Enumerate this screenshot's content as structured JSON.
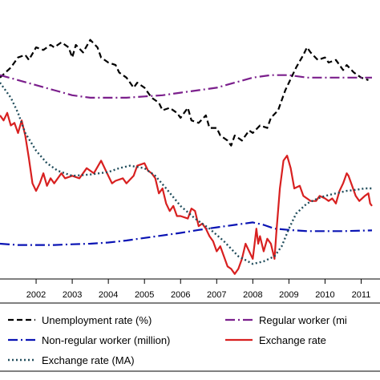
{
  "chart_data": {
    "type": "line",
    "x_ticks": [
      "2002",
      "2003",
      "2004",
      "2005",
      "2006",
      "2007",
      "2008",
      "2009",
      "2010",
      "2011"
    ],
    "x_range": [
      2001.0,
      2011.3
    ],
    "y_range": [
      0,
      100
    ],
    "grid": false,
    "legend_placement": "bottom",
    "series": [
      {
        "name": "Unemployment rate (%)",
        "color": "#000000",
        "style": "dashed",
        "points": [
          [
            2001.0,
            80
          ],
          [
            2001.3,
            84
          ],
          [
            2001.5,
            88
          ],
          [
            2001.7,
            89
          ],
          [
            2001.8,
            87
          ],
          [
            2002.0,
            92
          ],
          [
            2002.2,
            91
          ],
          [
            2002.4,
            93
          ],
          [
            2002.5,
            92
          ],
          [
            2002.7,
            94
          ],
          [
            2002.9,
            92
          ],
          [
            2003.0,
            88
          ],
          [
            2003.1,
            93
          ],
          [
            2003.3,
            90
          ],
          [
            2003.5,
            95
          ],
          [
            2003.7,
            92
          ],
          [
            2003.8,
            88
          ],
          [
            2004.0,
            86
          ],
          [
            2004.2,
            85
          ],
          [
            2004.3,
            82
          ],
          [
            2004.5,
            80
          ],
          [
            2004.7,
            76
          ],
          [
            2004.8,
            78
          ],
          [
            2005.0,
            76
          ],
          [
            2005.2,
            72
          ],
          [
            2005.4,
            70
          ],
          [
            2005.5,
            67
          ],
          [
            2005.7,
            68
          ],
          [
            2005.9,
            66
          ],
          [
            2006.0,
            64
          ],
          [
            2006.2,
            68
          ],
          [
            2006.3,
            63
          ],
          [
            2006.5,
            62
          ],
          [
            2006.7,
            65
          ],
          [
            2006.8,
            60
          ],
          [
            2007.0,
            60
          ],
          [
            2007.1,
            57
          ],
          [
            2007.3,
            55
          ],
          [
            2007.4,
            53
          ],
          [
            2007.5,
            57
          ],
          [
            2007.7,
            55
          ],
          [
            2007.9,
            59
          ],
          [
            2008.0,
            58
          ],
          [
            2008.2,
            61
          ],
          [
            2008.4,
            60
          ],
          [
            2008.5,
            64
          ],
          [
            2008.7,
            67
          ],
          [
            2008.9,
            75
          ],
          [
            2009.0,
            78
          ],
          [
            2009.2,
            84
          ],
          [
            2009.4,
            89
          ],
          [
            2009.5,
            92
          ],
          [
            2009.6,
            90
          ],
          [
            2009.8,
            87
          ],
          [
            2010.0,
            88
          ],
          [
            2010.1,
            86
          ],
          [
            2010.3,
            87
          ],
          [
            2010.5,
            83
          ],
          [
            2010.6,
            85
          ],
          [
            2010.8,
            82
          ],
          [
            2011.0,
            80
          ],
          [
            2011.2,
            79
          ]
        ]
      },
      {
        "name": "Regular worker (mi",
        "color": "#7b1f8c",
        "style": "dashdot",
        "points": [
          [
            2001.0,
            81
          ],
          [
            2001.5,
            79
          ],
          [
            2002.0,
            77
          ],
          [
            2002.5,
            75
          ],
          [
            2003.0,
            73
          ],
          [
            2003.5,
            72
          ],
          [
            2004.0,
            72
          ],
          [
            2004.5,
            72
          ],
          [
            2005.0,
            72.5
          ],
          [
            2005.5,
            73
          ],
          [
            2006.0,
            74
          ],
          [
            2006.5,
            75
          ],
          [
            2007.0,
            76
          ],
          [
            2007.5,
            78
          ],
          [
            2008.0,
            80
          ],
          [
            2008.5,
            81
          ],
          [
            2009.0,
            81
          ],
          [
            2009.5,
            80
          ],
          [
            2010.0,
            80
          ],
          [
            2010.5,
            80
          ],
          [
            2011.0,
            80
          ],
          [
            2011.3,
            80
          ]
        ]
      },
      {
        "name": "Non-regular worker (million)",
        "color": "#0a14b4",
        "style": "dashdot",
        "points": [
          [
            2001.0,
            14
          ],
          [
            2001.5,
            13.5
          ],
          [
            2002.0,
            13.5
          ],
          [
            2002.5,
            13.5
          ],
          [
            2003.0,
            13.8
          ],
          [
            2003.5,
            14
          ],
          [
            2004.0,
            14.5
          ],
          [
            2004.5,
            15.3
          ],
          [
            2005.0,
            16.3
          ],
          [
            2005.5,
            17.3
          ],
          [
            2006.0,
            18.3
          ],
          [
            2006.5,
            19.5
          ],
          [
            2007.0,
            20.5
          ],
          [
            2007.5,
            21.5
          ],
          [
            2008.0,
            22.5
          ],
          [
            2008.3,
            21.5
          ],
          [
            2008.6,
            20
          ],
          [
            2009.0,
            19.5
          ],
          [
            2009.5,
            19
          ],
          [
            2010.0,
            19
          ],
          [
            2010.5,
            19
          ],
          [
            2011.0,
            19.2
          ],
          [
            2011.3,
            19.3
          ]
        ]
      },
      {
        "name": "Exchange rate",
        "color": "#d82020",
        "style": "solid",
        "points": [
          [
            2001.0,
            65
          ],
          [
            2001.1,
            63
          ],
          [
            2001.2,
            66
          ],
          [
            2001.3,
            61
          ],
          [
            2001.4,
            62
          ],
          [
            2001.5,
            58
          ],
          [
            2001.6,
            63
          ],
          [
            2001.7,
            57
          ],
          [
            2001.8,
            48
          ],
          [
            2001.9,
            38
          ],
          [
            2002.0,
            35
          ],
          [
            2002.1,
            38
          ],
          [
            2002.2,
            42
          ],
          [
            2002.3,
            37
          ],
          [
            2002.4,
            40
          ],
          [
            2002.5,
            38
          ],
          [
            2002.7,
            42
          ],
          [
            2002.8,
            40
          ],
          [
            2003.0,
            41
          ],
          [
            2003.2,
            40
          ],
          [
            2003.4,
            44
          ],
          [
            2003.6,
            42
          ],
          [
            2003.8,
            47
          ],
          [
            2004.0,
            41
          ],
          [
            2004.1,
            38
          ],
          [
            2004.2,
            39
          ],
          [
            2004.4,
            40
          ],
          [
            2004.5,
            38
          ],
          [
            2004.7,
            41
          ],
          [
            2004.8,
            45
          ],
          [
            2005.0,
            46
          ],
          [
            2005.1,
            43
          ],
          [
            2005.2,
            42
          ],
          [
            2005.3,
            40
          ],
          [
            2005.4,
            34
          ],
          [
            2005.5,
            36
          ],
          [
            2005.6,
            30
          ],
          [
            2005.7,
            27
          ],
          [
            2005.8,
            29
          ],
          [
            2005.9,
            25
          ],
          [
            2006.0,
            25
          ],
          [
            2006.2,
            24
          ],
          [
            2006.3,
            28
          ],
          [
            2006.4,
            27
          ],
          [
            2006.5,
            21
          ],
          [
            2006.6,
            22
          ],
          [
            2006.7,
            20
          ],
          [
            2006.8,
            17
          ],
          [
            2006.9,
            15
          ],
          [
            2007.0,
            11
          ],
          [
            2007.1,
            13
          ],
          [
            2007.2,
            9
          ],
          [
            2007.3,
            5
          ],
          [
            2007.4,
            4
          ],
          [
            2007.5,
            2
          ],
          [
            2007.6,
            4
          ],
          [
            2007.7,
            8
          ],
          [
            2007.8,
            14
          ],
          [
            2007.9,
            11
          ],
          [
            2008.0,
            8
          ],
          [
            2008.05,
            14
          ],
          [
            2008.1,
            20
          ],
          [
            2008.15,
            14
          ],
          [
            2008.2,
            17
          ],
          [
            2008.3,
            11
          ],
          [
            2008.4,
            16
          ],
          [
            2008.5,
            14
          ],
          [
            2008.6,
            8
          ],
          [
            2008.65,
            18
          ],
          [
            2008.75,
            36
          ],
          [
            2008.85,
            47
          ],
          [
            2008.95,
            49
          ],
          [
            2009.05,
            44
          ],
          [
            2009.15,
            36
          ],
          [
            2009.3,
            37
          ],
          [
            2009.4,
            33
          ],
          [
            2009.5,
            32
          ],
          [
            2009.6,
            31
          ],
          [
            2009.75,
            31
          ],
          [
            2009.85,
            33
          ],
          [
            2010.0,
            32
          ],
          [
            2010.1,
            31
          ],
          [
            2010.2,
            32
          ],
          [
            2010.3,
            30
          ],
          [
            2010.4,
            35
          ],
          [
            2010.5,
            38
          ],
          [
            2010.6,
            42
          ],
          [
            2010.65,
            41
          ],
          [
            2010.75,
            37
          ],
          [
            2010.85,
            33
          ],
          [
            2010.95,
            31
          ],
          [
            2011.1,
            33
          ],
          [
            2011.2,
            34
          ],
          [
            2011.25,
            30
          ],
          [
            2011.3,
            29
          ]
        ]
      },
      {
        "name": "Exchange rate (MA)",
        "color": "#214d5c",
        "style": "dotted",
        "points": [
          [
            2001.0,
            78
          ],
          [
            2001.3,
            72
          ],
          [
            2001.5,
            66
          ],
          [
            2001.7,
            58
          ],
          [
            2002.0,
            51
          ],
          [
            2002.3,
            46
          ],
          [
            2002.6,
            43
          ],
          [
            2003.0,
            41
          ],
          [
            2003.5,
            41.5
          ],
          [
            2004.0,
            42.5
          ],
          [
            2004.3,
            44
          ],
          [
            2004.6,
            45
          ],
          [
            2005.0,
            44
          ],
          [
            2005.3,
            41
          ],
          [
            2005.6,
            36
          ],
          [
            2006.0,
            29
          ],
          [
            2006.4,
            24
          ],
          [
            2006.8,
            20
          ],
          [
            2007.2,
            15
          ],
          [
            2007.6,
            9
          ],
          [
            2008.0,
            6
          ],
          [
            2008.3,
            7
          ],
          [
            2008.6,
            9
          ],
          [
            2008.8,
            13
          ],
          [
            2009.0,
            20
          ],
          [
            2009.2,
            26
          ],
          [
            2009.5,
            30
          ],
          [
            2009.8,
            32
          ],
          [
            2010.0,
            33
          ],
          [
            2010.3,
            34
          ],
          [
            2010.6,
            35
          ],
          [
            2010.9,
            35.5
          ],
          [
            2011.1,
            36
          ],
          [
            2011.3,
            36
          ]
        ]
      }
    ]
  }
}
